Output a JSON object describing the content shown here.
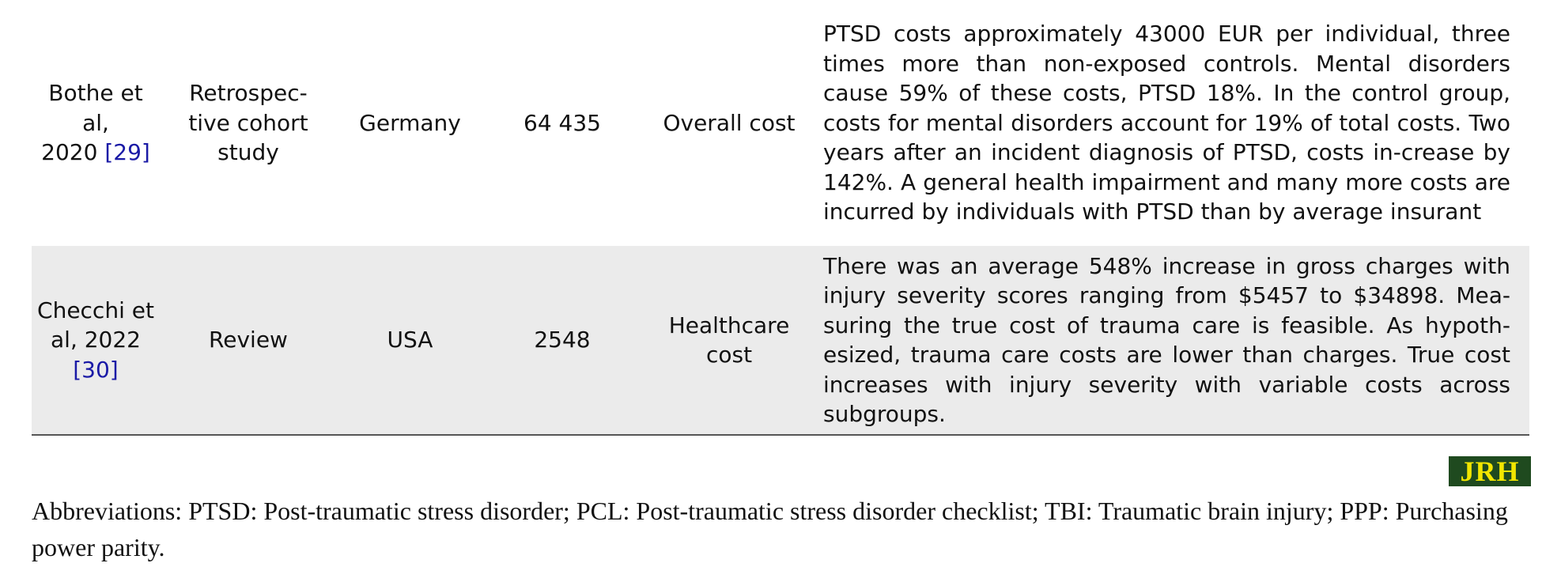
{
  "table": {
    "rows": [
      {
        "author_line1": "Bothe et al,",
        "author_line2": "2020",
        "ref": "[29]",
        "design_line1": "Retrospec-",
        "design_line2": "tive cohort",
        "design_line3": "study",
        "country": "Germany",
        "sample": "64 435",
        "cost_type": "Overall cost",
        "findings": "PTSD costs approximately 43000 EUR per individual, three times more than non-exposed controls. Mental disorders cause 59% of these costs, PTSD 18%. In the control group, costs for mental disorders account for 19% of total costs. Two years after an incident diagnosis of PTSD, costs in-crease by 142%. A general health impairment and many more costs are incurred by individuals with PTSD than by average insurant"
      },
      {
        "author_line1": "Checchi et",
        "author_line2": "al, 2022",
        "ref": "[30]",
        "design": "Review",
        "country": "USA",
        "sample": "2548",
        "cost_type": "Healthcare cost",
        "findings": "There was an average 548% increase in gross charges with injury severity scores ranging from $5457 to $34898. Mea-suring the true cost of trauma care is feasible. As hypoth-esized, trauma care costs are lower than charges. True cost increases with injury severity with variable costs across subgroups."
      }
    ]
  },
  "logo": {
    "text": "JRH",
    "bg_color": "#1f4a1f",
    "fg_color": "#f2e600"
  },
  "footnote": {
    "text": "Abbreviations: PTSD: Post-traumatic stress disorder; PCL: Post-traumatic stress disorder checklist; TBI: Traumatic brain injury; PPP: Purchasing power parity."
  },
  "colors": {
    "row_shade": "#ebebeb",
    "reference_link": "#1a1aa6",
    "rule": "#555555"
  }
}
